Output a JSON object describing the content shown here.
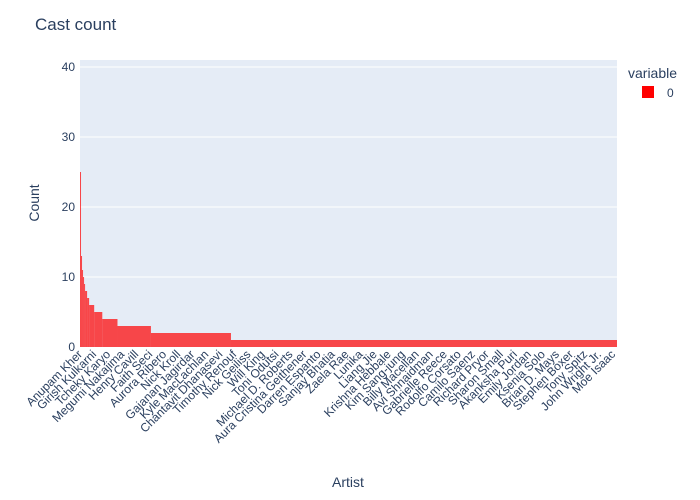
{
  "chart_data": {
    "type": "bar",
    "title": "Cast count",
    "xlabel": "Artist",
    "ylabel": "Count",
    "ylim": [
      0,
      41
    ],
    "yticks": [
      0,
      10,
      20,
      30,
      40
    ],
    "grid": true,
    "legend": {
      "title": "variable",
      "placement": "top-right"
    },
    "series": [
      {
        "name": "0",
        "color": "#ff0000",
        "opacity": 0.7
      }
    ],
    "tick_labels": [
      "Anupam Kher",
      "Girish Kulkarni",
      "Tcheky Karyo",
      "Megumi Nakajima",
      "Henry Cavill",
      "Faith Seci",
      "Aurora Ribero",
      "Nick Kroll",
      "Gajanan Jagirdar",
      "Kyle MacLachlan",
      "Chantavit Dhanasevi",
      "Timothy Renouf",
      "Nick Geiliss",
      "Will King",
      "Toni Odutsi",
      "Michael D. Roberts",
      "Aura Cristina Geithener",
      "Darren Espanto",
      "Sanjay Bhatia",
      "Zaela Rae",
      "Lunika",
      "Liang Jie",
      "Krishna Hebbale",
      "Kim Sang-jung",
      "Billy Macellan",
      "Avi Shnaidman",
      "Gabrielle Reece",
      "Rodolfo Corsato",
      "Camilo Saenz",
      "Richard Pryor",
      "Sharon Small",
      "Akanksha Puri",
      "Emily Jordan",
      "Ksenia Solo",
      "Brian D. Mays",
      "Stephen Boxer",
      "Tony Spitz",
      "John Wright Jr.",
      "Moe Isaac"
    ],
    "steps": [
      {
        "end": 1,
        "value": 25
      },
      {
        "end": 2,
        "value": 13
      },
      {
        "end": 3,
        "value": 11
      },
      {
        "end": 4,
        "value": 10
      },
      {
        "end": 5,
        "value": 9
      },
      {
        "end": 7,
        "value": 8
      },
      {
        "end": 9,
        "value": 7
      },
      {
        "end": 14,
        "value": 6
      },
      {
        "end": 22,
        "value": 5
      },
      {
        "end": 37,
        "value": 4
      },
      {
        "end": 70,
        "value": 3
      },
      {
        "end": 149,
        "value": 2
      },
      {
        "end": 530,
        "value": 1
      }
    ]
  }
}
